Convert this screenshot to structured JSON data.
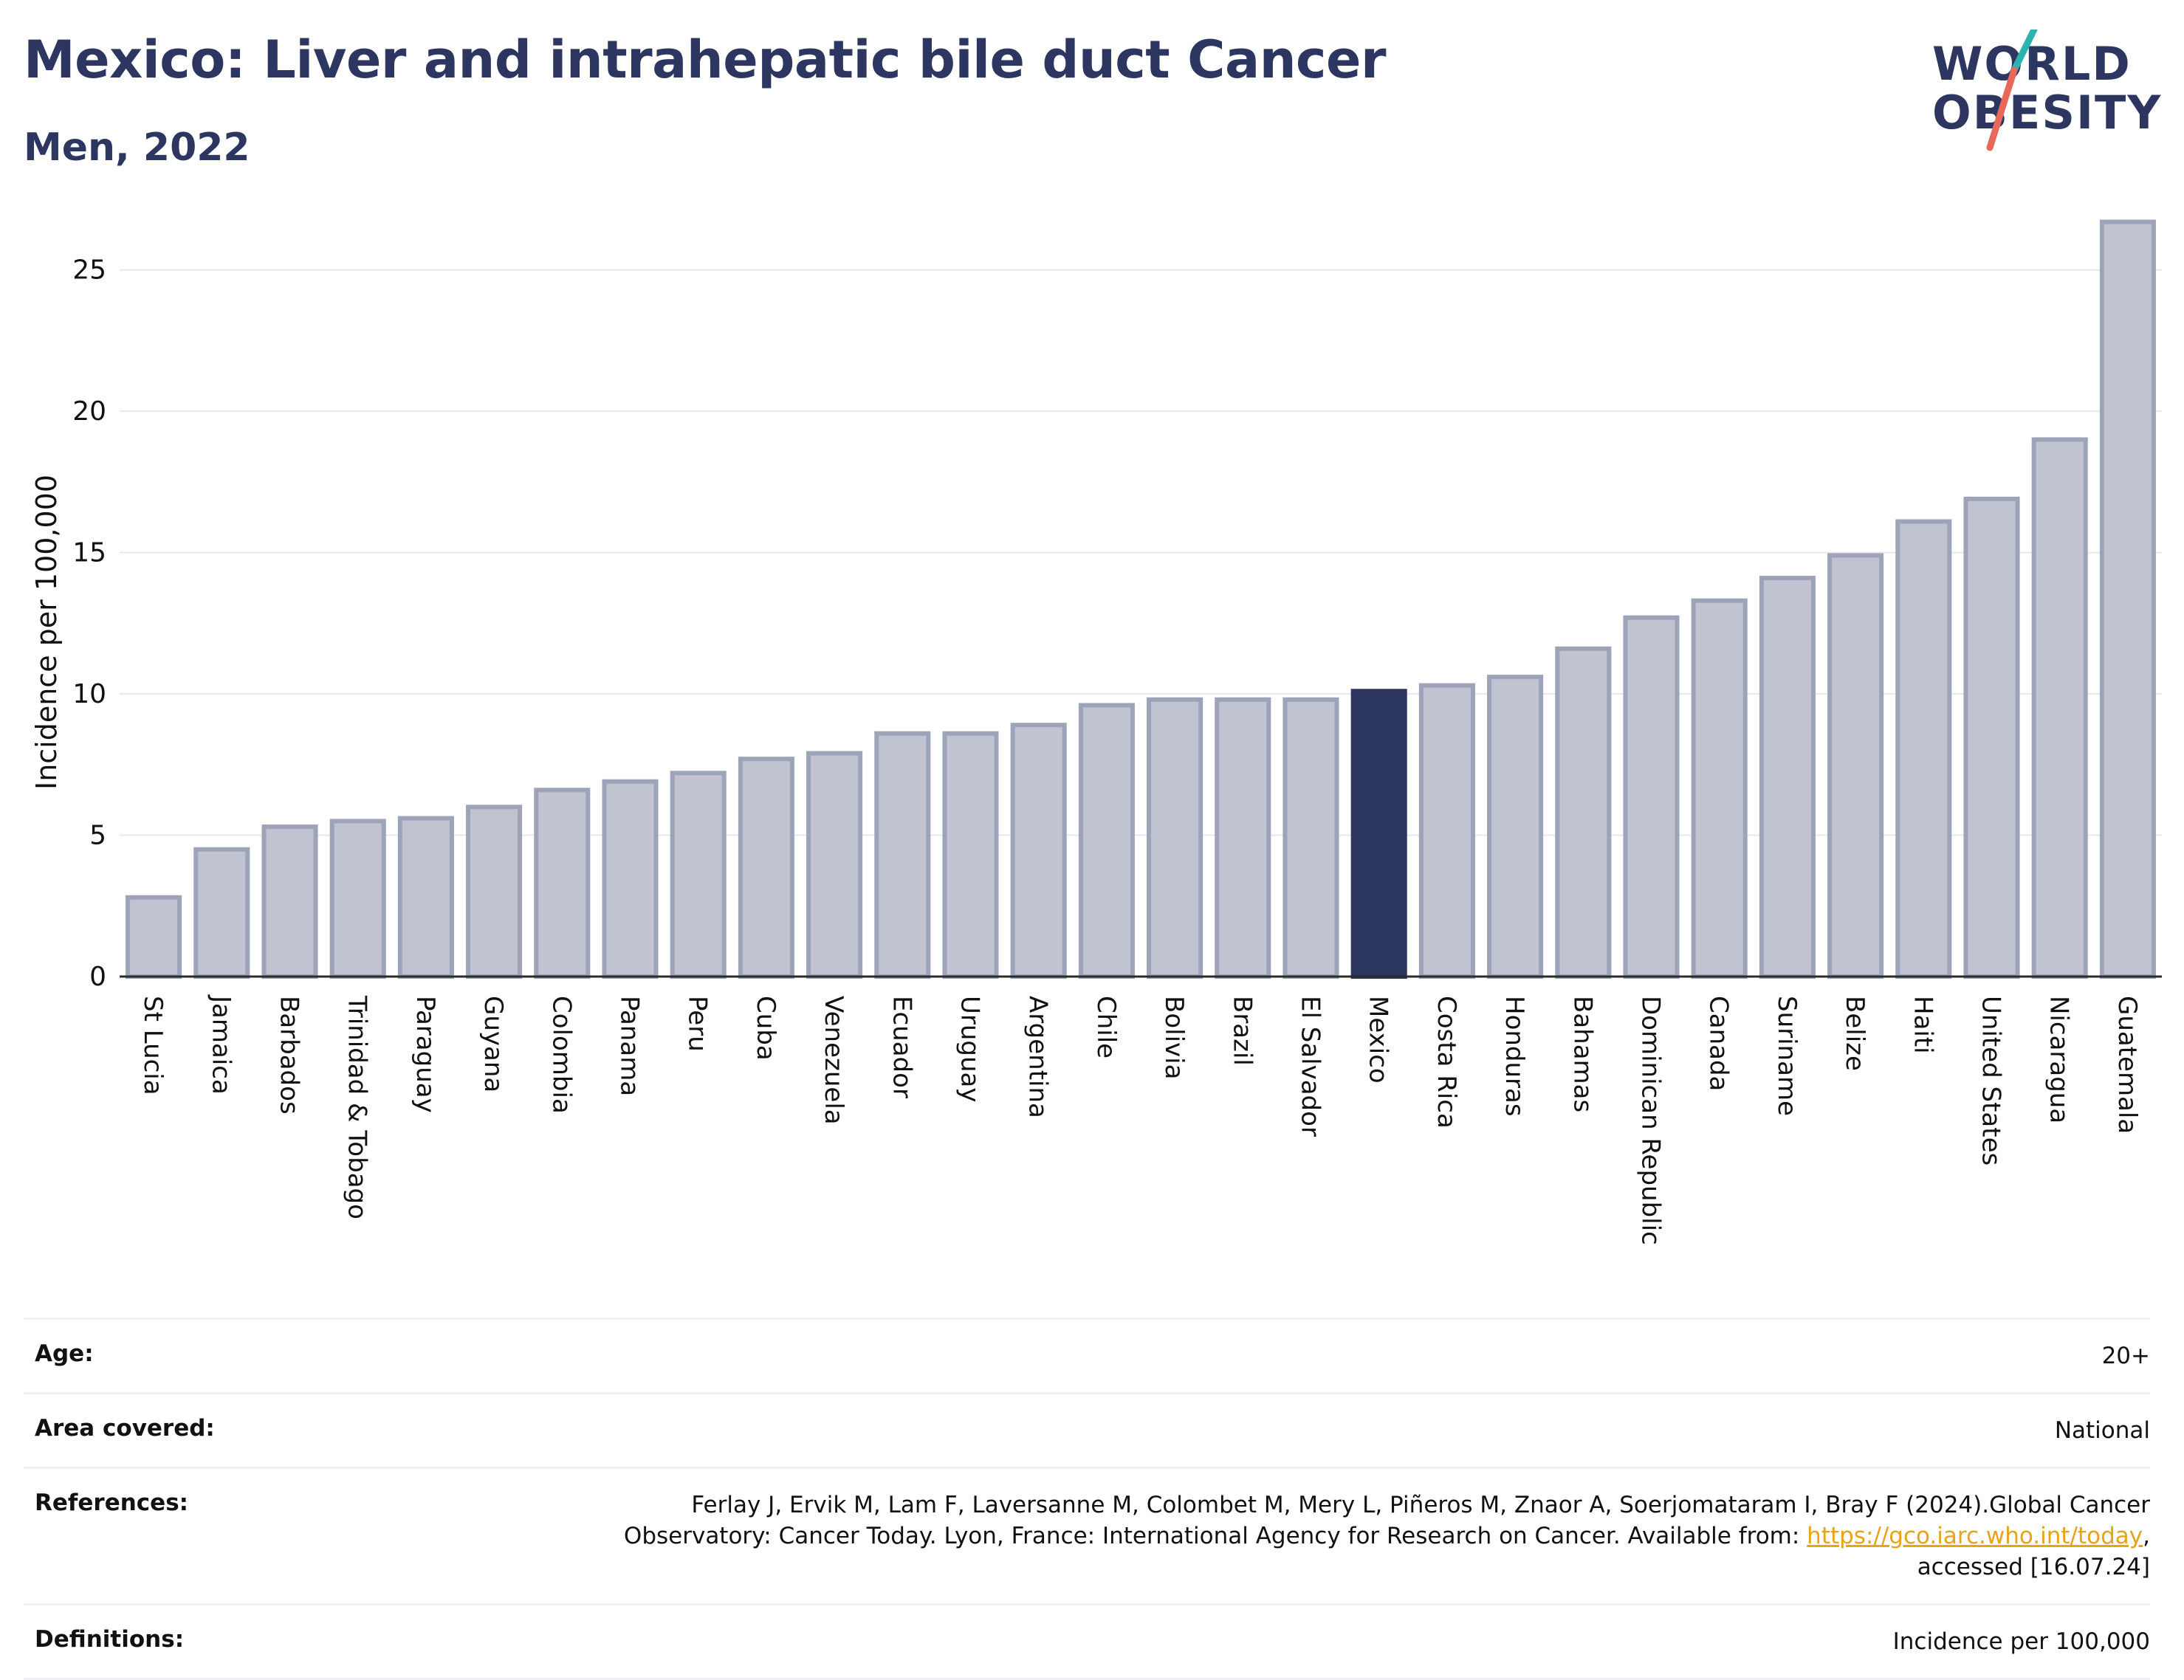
{
  "header": {
    "title": "Mexico: Liver and intrahepatic bile duct Cancer",
    "subtitle": "Men, 2022"
  },
  "logo": {
    "line1": "WORLD",
    "line2": "OBESITY",
    "slash_colors": [
      "#2bb3b0",
      "#e8685a"
    ]
  },
  "colors": {
    "bar": "#c0c4d0",
    "bar_edge": "#9da3b8",
    "highlight": "#2c3660",
    "title": "#2c3660",
    "link": "#e8a317"
  },
  "chart_data": {
    "type": "bar",
    "title": "Mexico: Liver and intrahepatic bile duct Cancer",
    "subtitle": "Men, 2022",
    "xlabel": "",
    "ylabel": "Incidence per 100,000",
    "ylim": [
      0,
      27.5
    ],
    "yticks": [
      0,
      5,
      10,
      15,
      20,
      25
    ],
    "grid": true,
    "highlight": "Mexico",
    "categories": [
      "St Lucia",
      "Jamaica",
      "Barbados",
      "Trinidad & Tobago",
      "Paraguay",
      "Guyana",
      "Colombia",
      "Panama",
      "Peru",
      "Cuba",
      "Venezuela",
      "Ecuador",
      "Uruguay",
      "Argentina",
      "Chile",
      "Bolivia",
      "Brazil",
      "El Salvador",
      "Mexico",
      "Costa Rica",
      "Honduras",
      "Bahamas",
      "Dominican Republic",
      "Canada",
      "Suriname",
      "Belize",
      "Haiti",
      "United States",
      "Nicaragua",
      "Guatemala"
    ],
    "values": [
      2.8,
      4.5,
      5.3,
      5.5,
      5.6,
      6.0,
      6.6,
      6.9,
      7.2,
      7.7,
      7.9,
      8.6,
      8.6,
      8.9,
      9.6,
      9.8,
      9.8,
      9.8,
      10.1,
      10.3,
      10.6,
      11.6,
      12.7,
      13.3,
      14.1,
      14.9,
      16.1,
      16.9,
      19.0,
      26.7
    ]
  },
  "meta": {
    "age_label": "Age:",
    "age_value": "20+",
    "area_label": "Area covered:",
    "area_value": "National",
    "references_label": "References:",
    "references_text1": "Ferlay J, Ervik M, Lam F, Laversanne M, Colombet M, Mery L, Piñeros M, Znaor A, Soerjomataram I, Bray F (2024).Global Cancer",
    "references_text2": "Observatory: Cancer Today. Lyon, France: International Agency for Research on Cancer. Available from: ",
    "references_link": "https://gco.iarc.who.int/today",
    "references_text3": ",",
    "references_text4": "accessed [16.07.24]",
    "definitions_label": "Definitions:",
    "definitions_value": "Incidence per 100,000"
  }
}
